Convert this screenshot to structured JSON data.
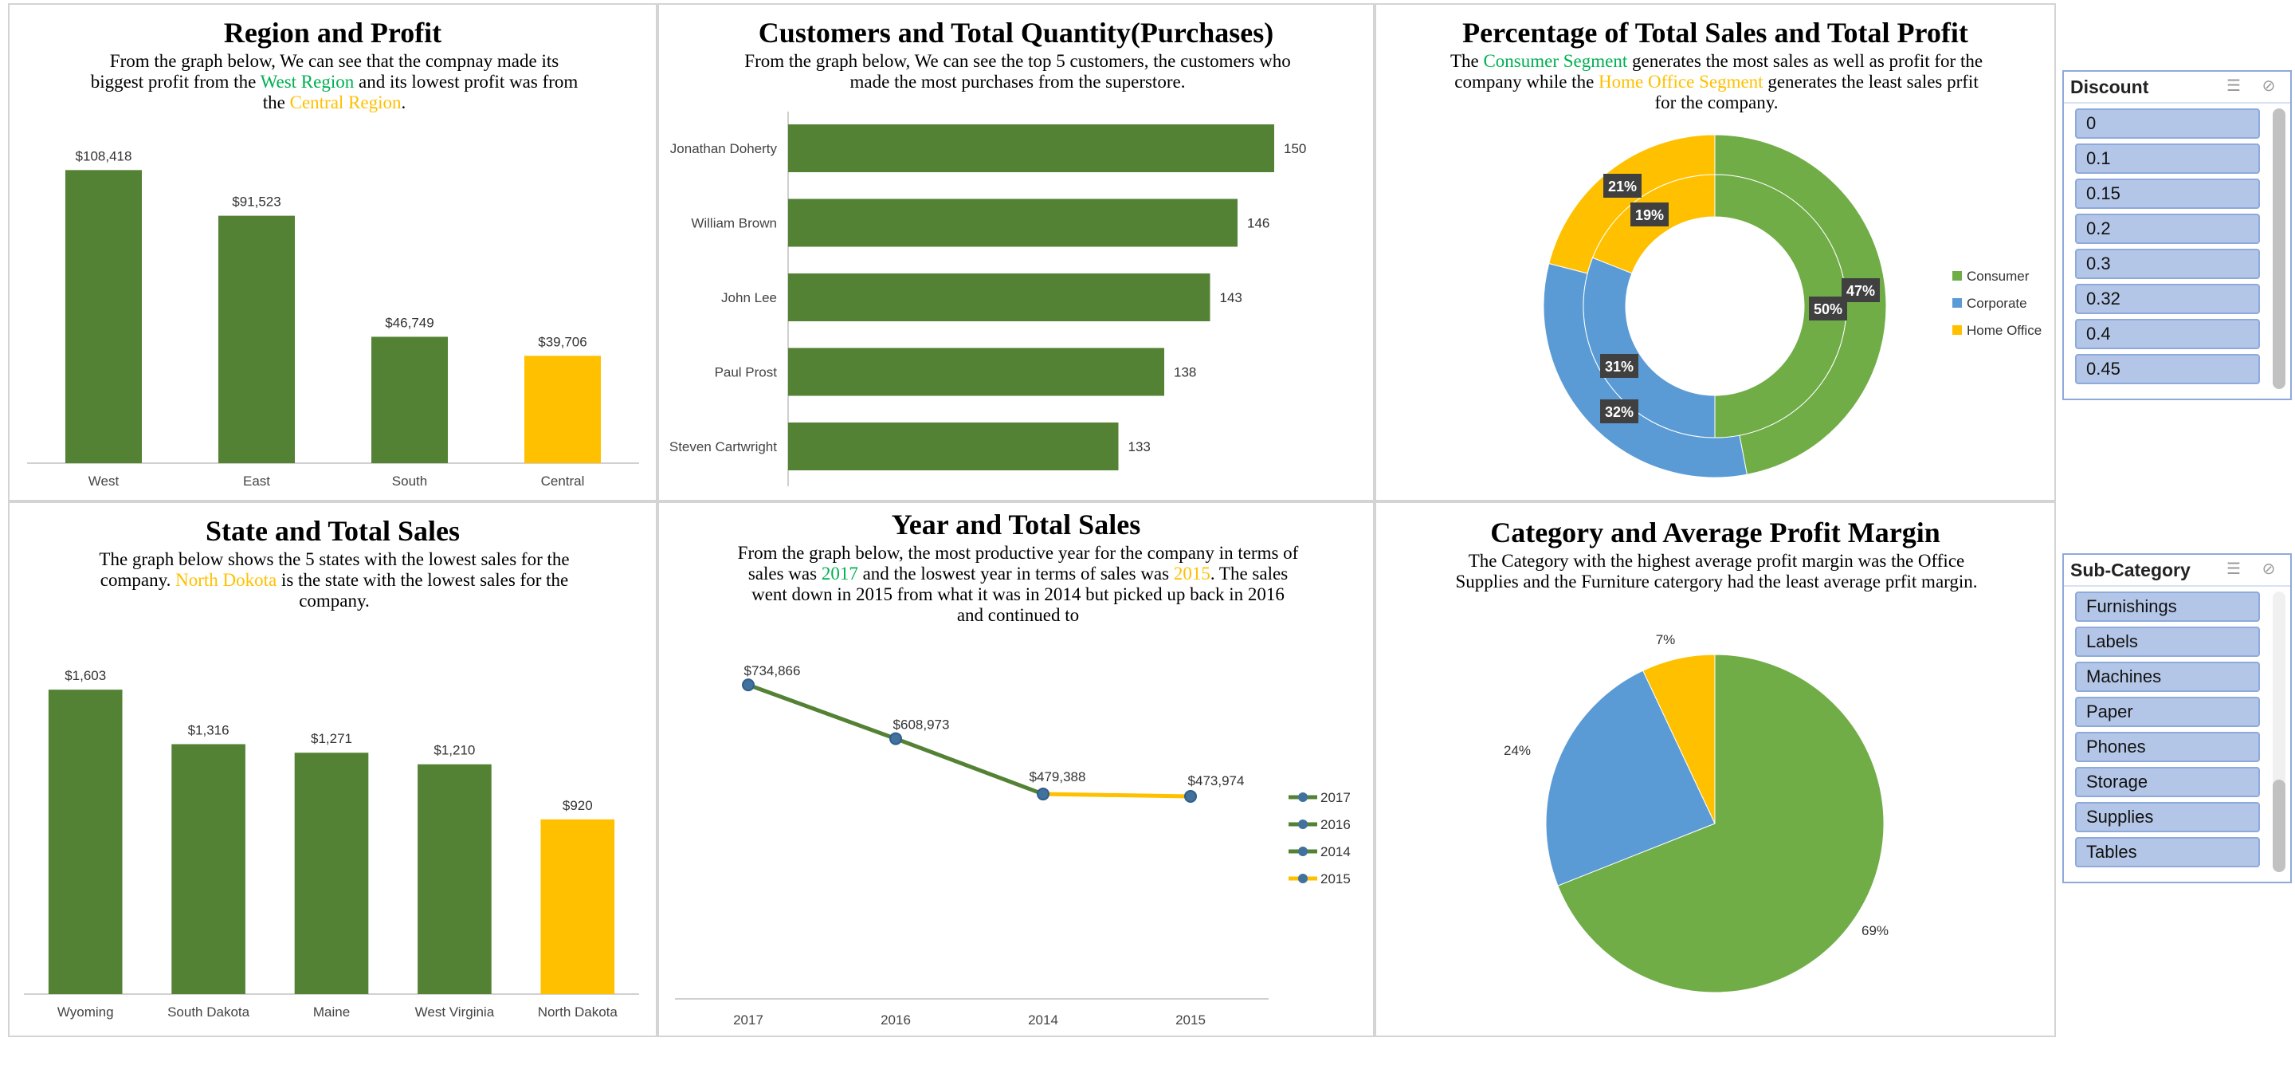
{
  "colors": {
    "green": "#548235",
    "yellow": "#ffc000",
    "pie_green": "#70ad47",
    "pie_blue": "#5b9bd5",
    "pie_yellow": "#ffc000",
    "highlight_green": "#00b050"
  },
  "panels": {
    "region": {
      "title": "Region and Profit",
      "desc_1": "From the graph below, We can see that the compnay made its biggest profit from the ",
      "desc_hl1": "West Region",
      "desc_2": " and its lowest profit was from the ",
      "desc_hl2": "Central Region",
      "desc_3": "."
    },
    "customers": {
      "title": "Customers and Total Quantity(Purchases)",
      "desc": "From the graph below, We can see the top 5 customers, the customers who made the most purchases from the superstore."
    },
    "segment": {
      "title": "Percentage of Total Sales and Total Profit",
      "desc_1": "The ",
      "desc_hl1": "Consumer Segment",
      "desc_2": " generates the most sales as well as profit  for the company while the ",
      "desc_hl2": "Home Office Segment",
      "desc_3": " generates the least sales prfit for the company."
    },
    "state": {
      "title": "State and Total Sales",
      "desc_1": "The graph below shows the 5 states with the lowest sales for the company. ",
      "desc_hl1": "North Dokota",
      "desc_2": " is the state with the lowest sales for the company."
    },
    "year": {
      "title": "Year and Total Sales",
      "desc_1": "From the graph below, the most productive year for the company in terms of sales was ",
      "desc_hl1": "2017",
      "desc_2": " and the loswest year in terms of sales was ",
      "desc_hl2": "2015",
      "desc_3": ". The sales went down in 2015 from what it was in 2014 but picked up back in 2016 and continued to"
    },
    "category": {
      "title": "Category and Average Profit Margin",
      "desc": "The Category with the highest average profit margin was the Office Supplies and the Furniture catergory had the least average prfit margin."
    }
  },
  "slicers": {
    "discount": {
      "title": "Discount",
      "items": [
        "0",
        "0.1",
        "0.15",
        "0.2",
        "0.3",
        "0.32",
        "0.4",
        "0.45"
      ]
    },
    "subcategory": {
      "title": "Sub-Category",
      "items": [
        "Furnishings",
        "Labels",
        "Machines",
        "Paper",
        "Phones",
        "Storage",
        "Supplies",
        "Tables"
      ]
    }
  },
  "chart_data": [
    {
      "id": "region",
      "type": "bar",
      "categories": [
        "West",
        "East",
        "South",
        "Central"
      ],
      "values": [
        108418,
        91523,
        46749,
        39706
      ],
      "data_labels": [
        "$108,418",
        "$91,523",
        "$46,749",
        "$39,706"
      ],
      "bar_colors": [
        "green",
        "green",
        "green",
        "yellow"
      ],
      "ylim": [
        0,
        115000
      ]
    },
    {
      "id": "customers",
      "type": "bar",
      "orientation": "horizontal",
      "categories": [
        "Jonathan Doherty",
        "William Brown",
        "John Lee",
        "Paul Prost",
        "Steven Cartwright"
      ],
      "values": [
        150,
        146,
        143,
        138,
        133
      ],
      "data_labels": [
        "150",
        "146",
        "143",
        "138",
        "133"
      ],
      "xlim": [
        120,
        150
      ]
    },
    {
      "id": "segment",
      "type": "pie",
      "style": "double-donut",
      "categories": [
        "Consumer",
        "Corporate",
        "Home Office"
      ],
      "legend": [
        "Consumer",
        "Corporate",
        "Home Office"
      ],
      "legend_position": "right",
      "series": [
        {
          "values": [
            47,
            32,
            21
          ],
          "labels": [
            "47%",
            "32%",
            "21%"
          ]
        },
        {
          "values": [
            50,
            31,
            19
          ],
          "labels": [
            "50%",
            "31%",
            "19%"
          ]
        }
      ]
    },
    {
      "id": "state",
      "type": "bar",
      "categories": [
        "Wyoming",
        "South Dakota",
        "Maine",
        "West Virginia",
        "North Dakota"
      ],
      "values": [
        1603,
        1316,
        1271,
        1210,
        920
      ],
      "data_labels": [
        "$1,603",
        "$1,316",
        "$1,271",
        "$1,210",
        "$920"
      ],
      "bar_colors": [
        "green",
        "green",
        "green",
        "green",
        "yellow"
      ],
      "ylim": [
        0,
        1700
      ]
    },
    {
      "id": "year",
      "type": "line",
      "categories": [
        "2017",
        "2016",
        "2014",
        "2015"
      ],
      "values": [
        734866,
        608973,
        479388,
        473974
      ],
      "data_labels": [
        "$734,866",
        "$608,973",
        "$479,388",
        "$473,974"
      ],
      "segment_colors": [
        "green",
        "green",
        "yellow"
      ],
      "legend": [
        "2017",
        "2016",
        "2014",
        "2015"
      ],
      "legend_colors": [
        "green",
        "green",
        "green",
        "yellow"
      ],
      "legend_position": "right",
      "ylim": [
        0,
        750000
      ]
    },
    {
      "id": "category",
      "type": "pie",
      "values": [
        69,
        24,
        7
      ],
      "labels": [
        "69%",
        "24%",
        "7%"
      ],
      "slice_colors": [
        "pie_green",
        "pie_blue",
        "pie_yellow"
      ]
    }
  ]
}
